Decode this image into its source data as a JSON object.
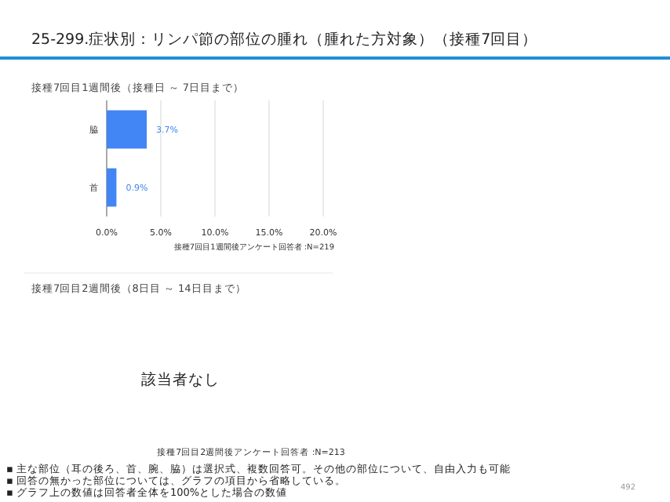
{
  "chart_data": [
    {
      "type": "bar",
      "orientation": "horizontal",
      "title": "25-299.症状別：リンパ節の部位の腫れ（腫れた方対象）（接種7回目）",
      "subtitle": "接種7回目1週間後（接種日 ～ 7日目まで）",
      "categories": [
        "脇",
        "首"
      ],
      "values": [
        3.7,
        0.9
      ],
      "value_labels": [
        "3.7%",
        "0.9%"
      ],
      "color": "#4285f4",
      "xlim": [
        0,
        20
      ],
      "xticks": [
        {
          "value": 0,
          "label": "0.0%"
        },
        {
          "value": 5,
          "label": "5.0%"
        },
        {
          "value": 10,
          "label": "10.0%"
        },
        {
          "value": 15,
          "label": "15.0%"
        },
        {
          "value": 20,
          "label": "20.0%"
        }
      ],
      "grid": "x",
      "annotations": [
        "接種7回目1週間後アンケート回答者 :N=219"
      ]
    },
    {
      "type": "other",
      "subtitle": "接種7回目2週間後（8日目 ～ 14日目まで）",
      "title": "該当者なし",
      "annotations": [
        "接種7回目2週間後アンケート回答者 :N=213",
        "▪ 主な部位（耳の後ろ、首、腕、脇）は選択式、複数回答可。その他の部位について、自由入力も可能",
        "▪ 回答の無かった部位については、グラフの項目から省略している。",
        "▪ グラフ上の数値は回答者全体を100%とした場合の数値",
        "492"
      ]
    }
  ]
}
